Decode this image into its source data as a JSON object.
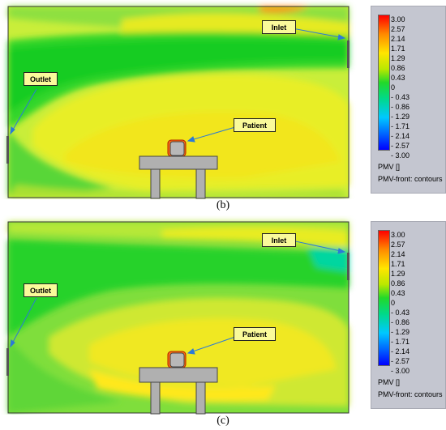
{
  "figure_b": {
    "caption": "(b)",
    "labels": {
      "inlet": "Inlet",
      "outlet": "Outlet",
      "patient": "Patient"
    },
    "legend": {
      "ticks": [
        "3.00",
        "2.57",
        "2.14",
        "1.71",
        "1.29",
        "0.86",
        "0.43",
        "0",
        "- 0.43",
        "- 0.86",
        "- 1.29",
        "- 1.71",
        "- 2.14",
        "- 2.57",
        "- 3.00"
      ],
      "title": "PMV []",
      "subtitle": "PMV-front: contours"
    }
  },
  "figure_c": {
    "caption": "(c)",
    "labels": {
      "inlet": "Inlet",
      "outlet": "Outlet",
      "patient": "Patient"
    },
    "legend": {
      "ticks": [
        "3.00",
        "2.57",
        "2.14",
        "1.71",
        "1.29",
        "0.86",
        "0.43",
        "0",
        "- 0.43",
        "- 0.86",
        "- 1.29",
        "- 1.71",
        "- 2.14",
        "- 2.57",
        "- 3.00"
      ],
      "title": "PMV []",
      "subtitle": "PMV-front: contours"
    }
  },
  "colors": {
    "cold_blue": "#0000ff",
    "neutral_green": "#22d92a",
    "warm_yellow": "#ffe600",
    "hot_red": "#ff0000",
    "furniture_gray": "#b0b0b0",
    "callout_fill": "#fafa9a"
  }
}
